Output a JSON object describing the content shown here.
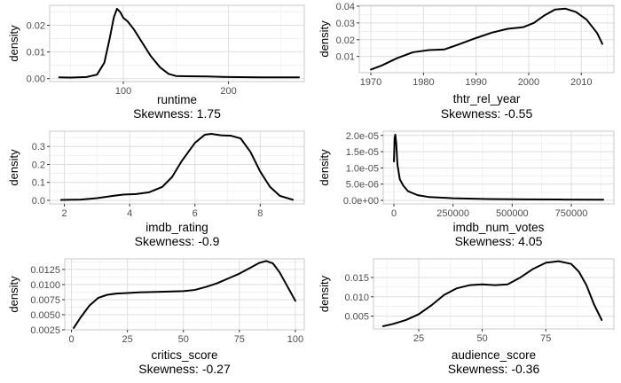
{
  "chart_data": [
    {
      "type": "line",
      "xlabel": "runtime",
      "ylabel": "density",
      "caption": "Skewness: 1.75",
      "xlim": [
        30,
        272
      ],
      "ylim": [
        -0.0011,
        0.0275
      ],
      "xticks": [
        100,
        200
      ],
      "yticks": [
        0.0,
        0.01,
        0.02
      ],
      "ytick_labels": [
        "0.00",
        "0.01",
        "0.02"
      ],
      "grid": true,
      "series": [
        {
          "x": [
            39,
            50,
            65,
            75,
            82,
            87,
            91,
            94,
            97,
            100,
            104,
            110,
            118,
            126,
            135,
            143,
            150,
            160,
            180,
            200,
            230,
            267
          ],
          "y": [
            0.0005,
            0.0004,
            0.0006,
            0.0015,
            0.006,
            0.015,
            0.023,
            0.0262,
            0.025,
            0.0228,
            0.0215,
            0.0185,
            0.0135,
            0.0085,
            0.0042,
            0.0018,
            0.001,
            0.0009,
            0.0008,
            0.0006,
            0.0005,
            0.0005
          ]
        }
      ]
    },
    {
      "type": "line",
      "xlabel": "thtr_rel_year",
      "ylabel": "density",
      "caption": "Skewness: -0.55",
      "xlim": [
        1967.8,
        2016.2
      ],
      "ylim": [
        0.0003,
        0.0405
      ],
      "xticks": [
        1970,
        1980,
        1990,
        2000,
        2010
      ],
      "yticks": [
        0.01,
        0.02,
        0.03,
        0.04
      ],
      "ytick_labels": [
        "0.01",
        "0.02",
        "0.03",
        "0.04"
      ],
      "grid": true,
      "series": [
        {
          "x": [
            1970,
            1972,
            1975,
            1978,
            1981,
            1984,
            1987,
            1990,
            1993,
            1996,
            1999,
            2001,
            2003,
            2005,
            2007,
            2009,
            2011,
            2013,
            2014
          ],
          "y": [
            0.0022,
            0.0045,
            0.009,
            0.0125,
            0.0138,
            0.0142,
            0.0175,
            0.021,
            0.0242,
            0.0265,
            0.0275,
            0.03,
            0.0345,
            0.038,
            0.0385,
            0.0365,
            0.032,
            0.024,
            0.0175
          ]
        }
      ]
    },
    {
      "type": "line",
      "xlabel": "imdb_rating",
      "ylabel": "density",
      "caption": "Skewness: -0.9",
      "xlim": [
        1.55,
        9.35
      ],
      "ylim": [
        -0.02,
        0.385
      ],
      "xticks": [
        2,
        4,
        6,
        8
      ],
      "yticks": [
        0.0,
        0.1,
        0.2,
        0.3
      ],
      "ytick_labels": [
        "0.0",
        "0.1",
        "0.2",
        "0.3"
      ],
      "grid": true,
      "series": [
        {
          "x": [
            1.9,
            2.5,
            3.0,
            3.5,
            3.8,
            4.2,
            4.6,
            5.0,
            5.3,
            5.6,
            6.0,
            6.3,
            6.5,
            6.8,
            7.1,
            7.4,
            7.7,
            8.0,
            8.3,
            8.6,
            9.0
          ],
          "y": [
            0.002,
            0.004,
            0.012,
            0.025,
            0.032,
            0.035,
            0.045,
            0.075,
            0.13,
            0.22,
            0.32,
            0.365,
            0.37,
            0.362,
            0.36,
            0.345,
            0.27,
            0.16,
            0.075,
            0.025,
            0.003
          ]
        }
      ]
    },
    {
      "type": "line",
      "xlabel": "imdb_num_votes",
      "ylabel": "density",
      "caption": "Skewness: 4.05",
      "xlim": [
        -45000,
        930000
      ],
      "ylim": [
        -1.1e-06,
        2.13e-05
      ],
      "xticks": [
        0,
        250000,
        500000,
        750000
      ],
      "yticks": [
        0.0,
        5e-06,
        1e-05,
        1.5e-05,
        2e-05
      ],
      "ytick_labels": [
        "0.0e+00",
        "5.0e-06",
        "1.0e-05",
        "1.5e-05",
        "2.0e-05"
      ],
      "grid": true,
      "series": [
        {
          "x": [
            200,
            3000,
            6000,
            10000,
            15000,
            25000,
            40000,
            60000,
            100000,
            150000,
            250000,
            400000,
            550000,
            700000,
            885000
          ],
          "y": [
            1.2e-05,
            1.92e-05,
            2.02e-05,
            1.75e-05,
            1.1e-05,
            6.5e-06,
            4.5e-06,
            2.8e-06,
            1.6e-06,
            1e-06,
            6.5e-07,
            4e-07,
            3e-07,
            2.5e-07,
            2e-07
          ]
        }
      ]
    },
    {
      "type": "line",
      "xlabel": "critics_score",
      "ylabel": "density",
      "caption": "Skewness: -0.27",
      "xlim": [
        -3.0,
        104.0
      ],
      "ylim": [
        0.0025,
        0.01425
      ],
      "xticks": [
        0,
        25,
        50,
        75,
        100
      ],
      "yticks": [
        0.0025,
        0.005,
        0.0075,
        0.01,
        0.0125
      ],
      "ytick_labels": [
        "0.0025",
        "0.0050",
        "0.0075",
        "0.0100",
        "0.0125"
      ],
      "grid": true,
      "series": [
        {
          "x": [
            1,
            4,
            8,
            12,
            16,
            20,
            25,
            30,
            40,
            50,
            55,
            60,
            65,
            70,
            75,
            80,
            84,
            87,
            90,
            93,
            96,
            100
          ],
          "y": [
            0.0028,
            0.0045,
            0.0065,
            0.0078,
            0.0083,
            0.0085,
            0.0086,
            0.0087,
            0.0088,
            0.0089,
            0.0091,
            0.0096,
            0.0102,
            0.011,
            0.0118,
            0.0128,
            0.0136,
            0.0139,
            0.0135,
            0.012,
            0.01,
            0.0073
          ]
        }
      ]
    },
    {
      "type": "line",
      "xlabel": "audience_score",
      "ylabel": "density",
      "caption": "Skewness: -0.36",
      "xlim": [
        7.2,
        101.8
      ],
      "ylim": [
        0.0017,
        0.0198
      ],
      "xticks": [
        25,
        50,
        75
      ],
      "yticks": [
        0.005,
        0.01,
        0.015
      ],
      "ytick_labels": [
        "0.005",
        "0.010",
        "0.015"
      ],
      "grid": true,
      "series": [
        {
          "x": [
            11,
            15,
            20,
            25,
            30,
            35,
            40,
            45,
            50,
            55,
            60,
            65,
            70,
            75,
            80,
            85,
            88,
            91,
            94,
            97
          ],
          "y": [
            0.0024,
            0.003,
            0.004,
            0.0055,
            0.0078,
            0.0105,
            0.0122,
            0.013,
            0.0132,
            0.013,
            0.0132,
            0.015,
            0.0172,
            0.0188,
            0.0192,
            0.0185,
            0.0165,
            0.013,
            0.008,
            0.004
          ]
        }
      ]
    }
  ]
}
